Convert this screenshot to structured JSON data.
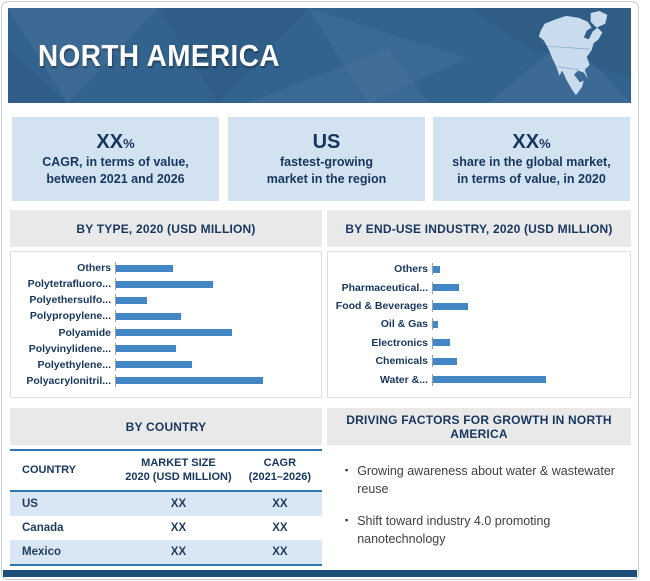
{
  "colors": {
    "banner_blue": "#32638f",
    "footer_navy": "#1f4e79",
    "bar_blue": "#4286c5",
    "stat_box_bg": "#d3e2f1",
    "navy_text": "#17365d",
    "strip_bg": "#e9e9ea",
    "table_border_blue": "#2e75b6",
    "row_alt_blue": "#d9e7f5",
    "map_fill": "#c9dcee"
  },
  "header": {
    "title": "NORTH AMERICA",
    "map_icon": "north-america-map-icon"
  },
  "stats": [
    {
      "value": "XX",
      "suffix": "%",
      "line1": "CAGR, in terms of value,",
      "line2": "between 2021 and 2026"
    },
    {
      "value": "US",
      "suffix": "",
      "line1": "fastest-growing",
      "line2": "market in the region"
    },
    {
      "value": "XX",
      "suffix": "%",
      "line1": "share in the global market,",
      "line2": "in terms of value, in 2020"
    }
  ],
  "chart_data": [
    {
      "type": "bar",
      "orientation": "horizontal",
      "title": "BY TYPE, 2020 (USD MILLION)",
      "categories": [
        "Others",
        "Polytetrafluoro...",
        "Polyethersulfo...",
        "Polypropylene...",
        "Polyamide",
        "Polyvinylidene...",
        "Polyethylene...",
        "Polyacrylonitril..."
      ],
      "values": [
        39,
        66,
        21,
        44,
        79,
        41,
        52,
        100
      ],
      "value_scale": "relative bar length, % of longest bar (numeric values masked as XX in source)",
      "bar_color": "#4286c5",
      "xlabel": "",
      "ylabel": "",
      "grid": false,
      "legend": false,
      "data_labels": false
    },
    {
      "type": "bar",
      "orientation": "horizontal",
      "title": "BY END-USE INDUSTRY, 2020 (USD MILLION)",
      "categories": [
        "Others",
        "Pharmaceutical...",
        "Food & Beverages",
        "Oil & Gas",
        "Electronics",
        "Chemicals",
        "Water &..."
      ],
      "values": [
        6,
        23,
        31,
        4,
        15,
        21,
        100
      ],
      "value_scale": "relative bar length, % of longest bar (numeric values masked as XX in source)",
      "bar_color": "#4286c5",
      "xlabel": "",
      "ylabel": "",
      "grid": false,
      "legend": false,
      "data_labels": false
    }
  ],
  "country_section": {
    "title": "BY COUNTRY",
    "table": {
      "headers": [
        [
          "COUNTRY"
        ],
        [
          "MARKET SIZE",
          "2020 (USD MILLION)"
        ],
        [
          "CAGR",
          "(2021–2026)"
        ]
      ],
      "rows": [
        [
          "US",
          "XX",
          "XX"
        ],
        [
          "Canada",
          "XX",
          "XX"
        ],
        [
          "Mexico",
          "XX",
          "XX"
        ]
      ]
    }
  },
  "driving_factors": {
    "title": "DRIVING FACTORS FOR GROWTH IN NORTH AMERICA",
    "bullets": [
      "Growing  awareness about water & wastewater reuse",
      "Shift toward industry 4.0 promoting nanotechnology"
    ]
  }
}
